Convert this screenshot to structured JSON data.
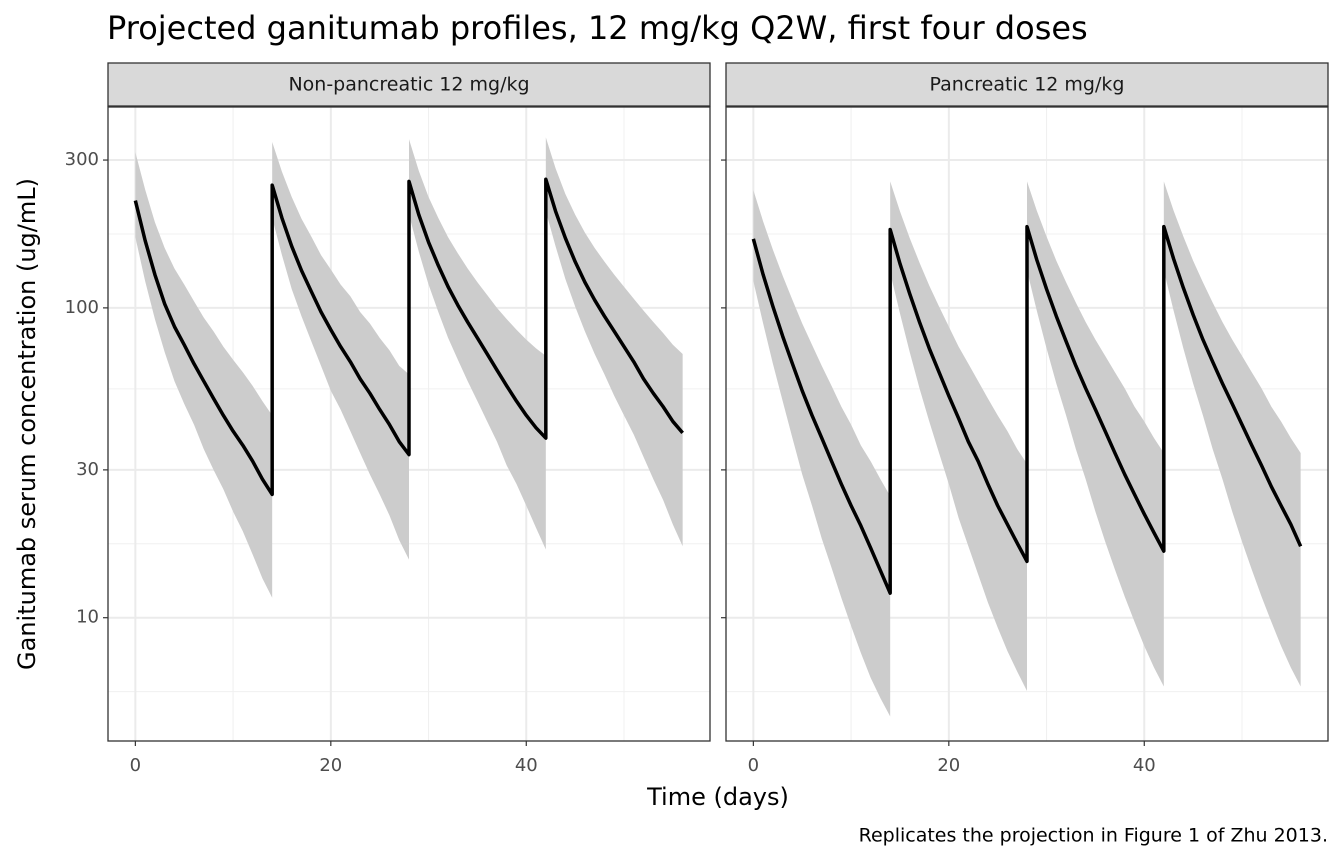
{
  "title": "Projected ganitumab profiles, 12 mg/kg Q2W, first four doses",
  "x_label": "Time (days)",
  "y_label": "Ganitumab serum concentration (ug/mL)",
  "caption": "Replicates the projection in Figure 1 of Zhu 2013.",
  "chart_data": [
    {
      "type": "line",
      "title": "Non-pancreatic 12 mg/kg",
      "log_y": true,
      "grid": true,
      "xlim": [
        -2.8,
        58.8
      ],
      "xticks": [
        0,
        20,
        40
      ],
      "ylim": [
        4,
        445
      ],
      "yticks": [
        10,
        30,
        100,
        300
      ],
      "x": [
        0,
        1,
        2,
        3,
        4,
        5,
        6,
        7,
        8,
        9,
        10,
        11,
        12,
        13,
        14,
        14,
        15,
        16,
        17,
        18,
        19,
        20,
        21,
        22,
        23,
        24,
        25,
        26,
        27,
        28,
        28,
        29,
        30,
        31,
        32,
        33,
        34,
        35,
        36,
        37,
        38,
        39,
        40,
        41,
        42,
        42,
        43,
        44,
        45,
        46,
        47,
        48,
        49,
        50,
        51,
        52,
        53,
        54,
        55,
        56
      ],
      "series": [
        {
          "color": "#000000",
          "band_color": "#cccccc",
          "values": [
            222,
            165,
            128,
            103,
            87,
            76,
            66,
            58,
            51,
            45,
            40,
            36,
            32,
            28,
            25,
            249,
            195,
            158,
            132,
            113,
            97,
            85,
            75,
            67,
            59,
            53,
            47,
            42,
            37,
            33.6,
            256,
            200,
            163,
            137,
            117,
            102,
            90,
            80,
            71,
            63,
            56,
            50,
            45,
            41,
            38,
            260,
            205,
            168,
            141,
            121,
            106,
            94,
            84,
            75,
            67,
            59,
            53,
            48,
            43,
            39.5
          ],
          "upper": [
            318,
            241,
            189,
            156,
            134,
            119,
            105,
            93,
            84,
            75,
            68,
            62,
            56,
            50,
            45,
            343,
            275,
            228,
            194,
            170,
            148,
            133,
            119,
            109,
            97,
            89,
            80,
            73,
            65,
            61,
            350,
            277,
            228,
            195,
            169,
            150,
            134,
            121,
            110,
            100,
            92,
            85,
            79,
            74,
            70,
            355,
            282,
            233,
            200,
            175,
            156,
            141,
            128,
            117,
            107,
            98,
            90,
            83,
            76,
            71
          ],
          "lower": [
            169,
            122,
            92,
            72,
            58,
            49,
            42,
            35,
            30,
            26,
            22,
            19,
            16,
            13.4,
            11.6,
            195,
            148,
            115,
            94,
            78,
            65,
            54,
            47,
            40,
            34,
            29,
            25,
            21.4,
            17.8,
            15.4,
            200,
            152,
            119,
            97,
            80,
            68,
            58,
            50,
            43,
            37,
            31,
            27,
            23,
            19.5,
            16.6,
            205,
            158,
            124,
            101,
            84,
            71,
            61,
            52,
            45,
            39,
            33,
            28,
            24,
            20,
            17
          ]
        }
      ]
    },
    {
      "type": "line",
      "title": "Pancreatic 12 mg/kg",
      "log_y": true,
      "grid": true,
      "xlim": [
        -2.8,
        58.8
      ],
      "xticks": [
        0,
        20,
        40
      ],
      "ylim": [
        4,
        445
      ],
      "yticks": [
        10,
        30,
        100,
        300
      ],
      "x": [
        0,
        1,
        2,
        3,
        4,
        5,
        6,
        7,
        8,
        9,
        10,
        11,
        12,
        13,
        14,
        14,
        15,
        16,
        17,
        18,
        19,
        20,
        21,
        22,
        23,
        24,
        25,
        26,
        27,
        28,
        28,
        29,
        30,
        31,
        32,
        33,
        34,
        35,
        36,
        37,
        38,
        39,
        40,
        41,
        42,
        42,
        43,
        44,
        45,
        46,
        47,
        48,
        49,
        50,
        51,
        52,
        53,
        54,
        55,
        56
      ],
      "series": [
        {
          "color": "#000000",
          "band_color": "#cccccc",
          "values": [
            167,
            128,
            101,
            81,
            66,
            54,
            45,
            38,
            32,
            27,
            23,
            19.8,
            16.8,
            14.2,
            12,
            179,
            139,
            111,
            90,
            74,
            62,
            52,
            44,
            37,
            32,
            27,
            23,
            20,
            17.4,
            15.2,
            183,
            143,
            115,
            94,
            78,
            65,
            55,
            47,
            40,
            34,
            29,
            25,
            21.6,
            18.8,
            16.4,
            183,
            144,
            116,
            95,
            79,
            67,
            57,
            49,
            42,
            36,
            31,
            26.5,
            23,
            20,
            17
          ],
          "upper": [
            240,
            190,
            154,
            127,
            106,
            89,
            76,
            65,
            56,
            48,
            42,
            36,
            32,
            28,
            24.7,
            256,
            205,
            168,
            140,
            118,
            101,
            87,
            75,
            66,
            58,
            51,
            45,
            40,
            35,
            31.4,
            256,
            206,
            170,
            142,
            121,
            104,
            90,
            79,
            70,
            62,
            55,
            48,
            43,
            38,
            34,
            256,
            206,
            170,
            142,
            121,
            104,
            90,
            79,
            70,
            62,
            55,
            48,
            43,
            38,
            34
          ],
          "lower": [
            122,
            89,
            66,
            50,
            38,
            29,
            23,
            18,
            14.5,
            11.6,
            9.4,
            7.7,
            6.4,
            5.5,
            4.8,
            130,
            96,
            72,
            55,
            43,
            34,
            27,
            21,
            17,
            13.8,
            11.2,
            9.3,
            7.8,
            6.7,
            5.8,
            132,
            98,
            74,
            57,
            45,
            35,
            28,
            22,
            17.6,
            14.3,
            11.7,
            9.7,
            8.1,
            6.9,
            6.0,
            132,
            98,
            74,
            57,
            45,
            35,
            28,
            22,
            17.6,
            14.3,
            11.7,
            9.7,
            8.1,
            6.9,
            6.0
          ]
        }
      ]
    }
  ]
}
